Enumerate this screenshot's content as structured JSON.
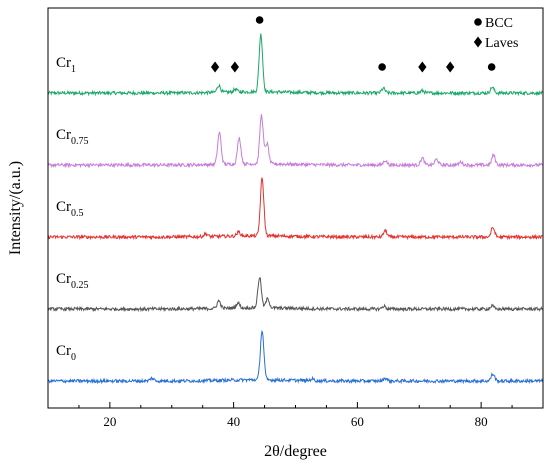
{
  "chart_data": {
    "type": "line",
    "xlabel": "2θ/degree",
    "ylabel": "Intensity/(a.u.)",
    "xlim": [
      10,
      90
    ],
    "x_ticks": [
      20,
      40,
      60,
      80
    ],
    "y_ticks_shown": false,
    "grid": false,
    "legend": {
      "placement": "top-right",
      "entries": [
        {
          "marker": "circle",
          "label": "BCC"
        },
        {
          "marker": "diamond",
          "label": "Laves"
        }
      ]
    },
    "series": [
      {
        "name_base": "Cr",
        "name_sub": "1",
        "color": "#1aa86a",
        "baseline": 4.0,
        "peaks": [
          {
            "x": 37.6,
            "h": 0.12
          },
          {
            "x": 40.3,
            "h": 0.05
          },
          {
            "x": 44.4,
            "h": 0.99
          },
          {
            "x": 64.2,
            "h": 0.08
          },
          {
            "x": 70.5,
            "h": 0.04
          },
          {
            "x": 81.8,
            "h": 0.1
          }
        ]
      },
      {
        "name_base": "Cr",
        "name_sub": "0.75",
        "color": "#c77ddb",
        "baseline": 3.0,
        "peaks": [
          {
            "x": 37.7,
            "h": 0.55
          },
          {
            "x": 40.9,
            "h": 0.45
          },
          {
            "x": 44.5,
            "h": 0.84
          },
          {
            "x": 45.4,
            "h": 0.35
          },
          {
            "x": 64.5,
            "h": 0.08
          },
          {
            "x": 70.5,
            "h": 0.12
          },
          {
            "x": 72.8,
            "h": 0.1
          },
          {
            "x": 76.7,
            "h": 0.05
          },
          {
            "x": 82.0,
            "h": 0.17
          }
        ]
      },
      {
        "name_base": "Cr",
        "name_sub": "0.5",
        "color": "#e6312e",
        "baseline": 2.0,
        "peaks": [
          {
            "x": 35.5,
            "h": 0.05
          },
          {
            "x": 40.8,
            "h": 0.07
          },
          {
            "x": 44.6,
            "h": 0.99
          },
          {
            "x": 64.5,
            "h": 0.11
          },
          {
            "x": 81.9,
            "h": 0.16
          }
        ]
      },
      {
        "name_base": "Cr",
        "name_sub": "0.25",
        "color": "#555555",
        "baseline": 1.0,
        "peaks": [
          {
            "x": 37.6,
            "h": 0.13
          },
          {
            "x": 40.7,
            "h": 0.09
          },
          {
            "x": 44.2,
            "h": 0.53
          },
          {
            "x": 45.5,
            "h": 0.16
          },
          {
            "x": 64.3,
            "h": 0.05
          },
          {
            "x": 81.8,
            "h": 0.05
          }
        ]
      },
      {
        "name_base": "Cr",
        "name_sub": "0",
        "color": "#2a6fd6",
        "baseline": 0.0,
        "peaks": [
          {
            "x": 26.8,
            "h": 0.05
          },
          {
            "x": 44.6,
            "h": 0.85
          },
          {
            "x": 52.7,
            "h": 0.03
          },
          {
            "x": 64.5,
            "h": 0.05
          },
          {
            "x": 81.9,
            "h": 0.12
          }
        ]
      }
    ],
    "annotations": [
      {
        "marker": "circle",
        "x": 44.2
      },
      {
        "marker": "diamond",
        "x": 37.0
      },
      {
        "marker": "diamond",
        "x": 40.2
      },
      {
        "marker": "circle",
        "x": 64.0
      },
      {
        "marker": "diamond",
        "x": 70.5
      },
      {
        "marker": "diamond",
        "x": 75.0
      },
      {
        "marker": "circle",
        "x": 81.7
      }
    ]
  }
}
